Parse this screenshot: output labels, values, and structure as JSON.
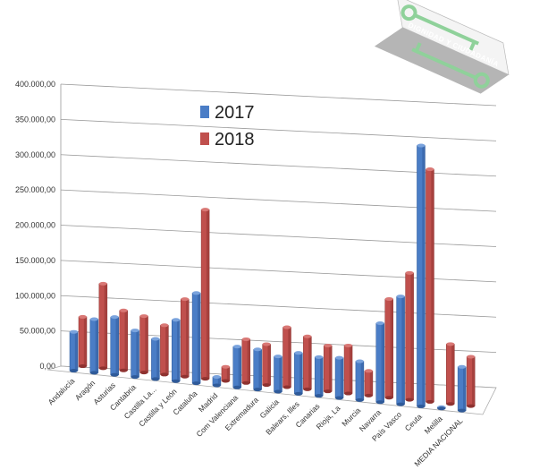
{
  "chart_data": {
    "type": "bar",
    "title": "",
    "xlabel": "",
    "ylabel": "",
    "ylim": [
      0,
      400000
    ],
    "yticks": [
      "0,00",
      "50.000,00",
      "100.000,00",
      "150.000,00",
      "200.000,00",
      "250.000,00",
      "300.000,00",
      "350.000,00",
      "400.000,00"
    ],
    "grid": true,
    "legend_position": "top-left",
    "categories": [
      "Andalucía",
      "Aragón",
      "Asturias",
      "Cantabria",
      "Castilla La...",
      "Castilla y León",
      "Cataluña",
      "Madrid",
      "Com Valenciana",
      "Extremadura",
      "Galicia",
      "Balears, Illes",
      "Canarias",
      "Rioja, La",
      "Murcia",
      "Navarra",
      "País Vasco",
      "Ceuta",
      "Melilla",
      "MEDIA NACIONAL"
    ],
    "series": [
      {
        "name": "2017",
        "color": "#4a7dc6",
        "values": [
          55000,
          76000,
          82000,
          66000,
          57000,
          87000,
          128000,
          12000,
          58000,
          57000,
          50000,
          58000,
          55000,
          57000,
          55000,
          112000,
          153000,
          370000,
          1000,
          62000
        ]
      },
      {
        "name": "2018",
        "color": "#c0504d",
        "values": [
          70000,
          120000,
          85000,
          80000,
          70000,
          110000,
          240000,
          20000,
          62000,
          58000,
          85000,
          75000,
          65000,
          68000,
          35000,
          140000,
          180000,
          330000,
          85000,
          70000
        ]
      }
    ]
  },
  "logo": {
    "text": "DIGNIDAD Y CIUDADANÍA"
  }
}
